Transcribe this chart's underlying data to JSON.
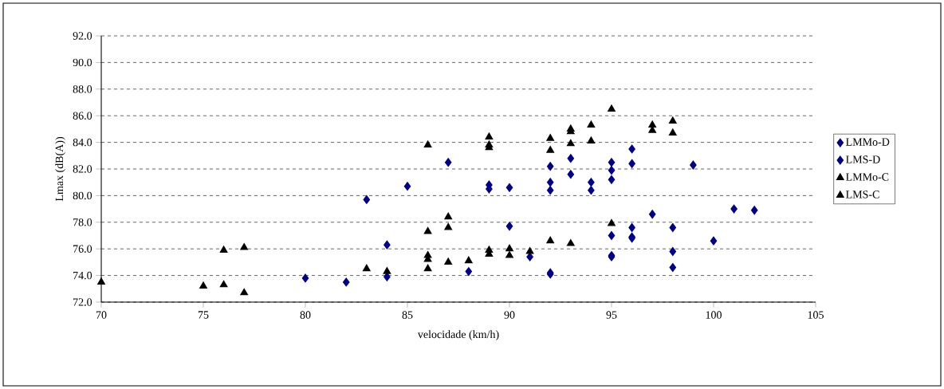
{
  "chart_data": {
    "type": "scatter",
    "xlabel": "velocidade (km/h)",
    "ylabel": "Lmax (dB(A))",
    "xlim": [
      70,
      105
    ],
    "xticks": [
      70,
      75,
      80,
      85,
      90,
      95,
      100,
      105
    ],
    "ylim": [
      72,
      92
    ],
    "yticks": [
      {
        "value": 72,
        "label": "72.0"
      },
      {
        "value": 74,
        "label": "74.0"
      },
      {
        "value": 76,
        "label": "76.0"
      },
      {
        "value": 78,
        "label": "78.0"
      },
      {
        "value": 80,
        "label": "80.0"
      },
      {
        "value": 82,
        "label": "82.0"
      },
      {
        "value": 84,
        "label": "84.0"
      },
      {
        "value": 86,
        "label": "86.0"
      },
      {
        "value": 88,
        "label": "88.0"
      },
      {
        "value": 90,
        "label": "90.0"
      },
      {
        "value": 92,
        "label": "92.0"
      }
    ],
    "grid": "y",
    "legend": "right",
    "series": [
      {
        "name": "LMMo-D",
        "color": "#000080",
        "marker": "diamond",
        "x": [
          83,
          85,
          87,
          89,
          89,
          90,
          92,
          92,
          92,
          93,
          93,
          94,
          94,
          95,
          95,
          95,
          96,
          96,
          99
        ],
        "values": [
          79.7,
          80.7,
          82.5,
          80.8,
          80.5,
          80.6,
          82.2,
          81.0,
          80.4,
          82.8,
          81.6,
          81.0,
          80.4,
          82.5,
          81.9,
          81.2,
          83.5,
          82.4,
          82.3
        ]
      },
      {
        "name": "LMS-D",
        "color": "#000080",
        "marker": "diamond",
        "x": [
          80,
          82,
          84,
          84,
          88,
          90,
          91,
          92,
          92,
          95,
          95,
          95,
          96,
          96,
          96,
          97,
          98,
          98,
          98,
          100,
          101,
          102
        ],
        "values": [
          73.8,
          73.5,
          76.3,
          73.9,
          74.3,
          77.7,
          75.4,
          74.2,
          74.1,
          77.0,
          75.5,
          75.4,
          77.6,
          76.9,
          76.8,
          78.6,
          77.6,
          75.8,
          74.6,
          76.6,
          79.0,
          78.9
        ]
      },
      {
        "name": "LMMo-C",
        "color": "#000000",
        "marker": "triangle",
        "x": [
          86,
          89,
          89,
          89,
          92,
          92,
          93,
          93,
          93,
          94,
          94,
          95,
          97,
          97,
          98,
          98
        ],
        "values": [
          83.8,
          84.4,
          83.8,
          83.6,
          84.3,
          83.4,
          85.0,
          84.8,
          83.9,
          85.3,
          84.1,
          86.5,
          85.3,
          84.9,
          85.6,
          84.7
        ]
      },
      {
        "name": "LMS-C",
        "color": "#000000",
        "marker": "triangle",
        "x": [
          70,
          75,
          76,
          76,
          77,
          77,
          83,
          84,
          86,
          86,
          86,
          86,
          87,
          87,
          87,
          88,
          89,
          89,
          90,
          90,
          91,
          92,
          93,
          95
        ],
        "values": [
          73.5,
          73.2,
          75.9,
          73.3,
          76.1,
          72.7,
          74.5,
          74.3,
          77.3,
          75.5,
          75.2,
          74.5,
          78.4,
          77.6,
          75.0,
          75.1,
          75.9,
          75.6,
          76.0,
          75.5,
          75.8,
          76.6,
          76.4,
          77.9
        ]
      }
    ]
  }
}
